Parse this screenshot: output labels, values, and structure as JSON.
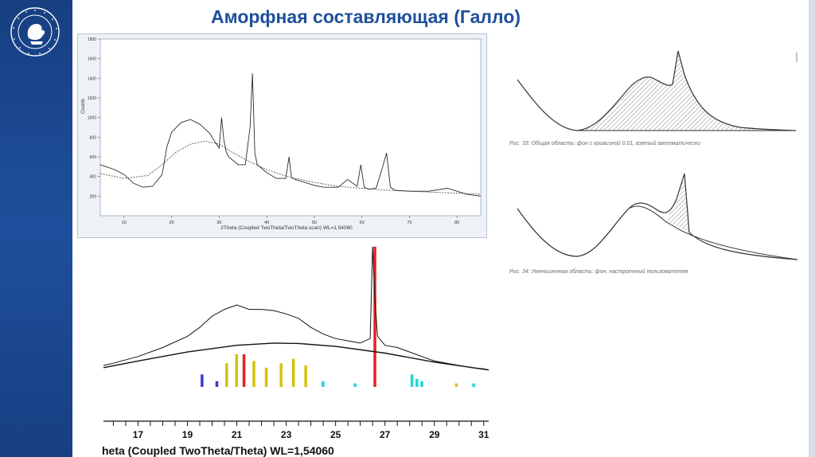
{
  "slide": {
    "title": "Аморфная составляющая (Галло)"
  },
  "logo": {
    "ring_text": "КАЗАНСКИЙ ФЕДЕРАЛЬНЫЙ УНИВЕРСИТЕТ"
  },
  "top_chart": {
    "ylabel": "Counts",
    "xlabel": "2Theta (Coupled TwoTheta/TwoTheta scan) WL=1,54060",
    "x_ticks": [
      "10",
      "20",
      "30",
      "40",
      "50",
      "60",
      "70",
      "80"
    ],
    "y_ticks": [
      "200",
      "400",
      "600",
      "800",
      "1000",
      "1200",
      "1400",
      "1600",
      "1800"
    ]
  },
  "bottom_chart": {
    "xlabel": "heta (Coupled TwoTheta/Theta) WL=1,54060",
    "x_ticks": [
      "17",
      "19",
      "21",
      "23",
      "25",
      "27",
      "29",
      "31"
    ]
  },
  "figures": {
    "fig33_caption": "Рис. 33: Общая область: фон с кривизной 0.01, взятый автоматически",
    "fig34_caption": "Рис. 34: Уменьшенная область: фон, настроенный пользователем"
  },
  "chart_data": [
    {
      "type": "line",
      "xlabel": "2Theta (Coupled TwoTheta/TwoTheta scan) WL=1,54060",
      "ylabel": "Counts",
      "xlim": [
        5,
        85
      ],
      "ylim": [
        0,
        1800
      ],
      "series": [
        {
          "x": [
            5,
            8,
            10,
            12,
            14,
            16,
            18,
            19,
            20,
            22,
            24,
            26,
            28,
            29,
            30,
            30.5,
            31,
            31.5,
            32,
            34,
            35.5,
            36.5,
            37,
            37.5,
            38,
            40,
            42,
            44,
            44.7,
            45.2,
            46,
            48,
            50,
            52,
            55,
            57,
            59,
            59.8,
            60.5,
            61.5,
            63,
            64.5,
            65.2,
            66,
            67,
            70,
            74,
            78,
            82,
            85
          ],
          "y": [
            520,
            470,
            420,
            330,
            290,
            300,
            420,
            700,
            850,
            950,
            980,
            930,
            840,
            760,
            690,
            1000,
            770,
            650,
            600,
            520,
            520,
            900,
            1450,
            640,
            520,
            440,
            380,
            380,
            600,
            390,
            370,
            340,
            310,
            290,
            290,
            370,
            300,
            520,
            290,
            270,
            280,
            520,
            640,
            290,
            260,
            250,
            250,
            280,
            220,
            200
          ]
        },
        {
          "x": [
            5,
            10,
            15,
            18,
            21,
            24,
            27,
            30,
            33,
            36,
            40,
            45,
            50,
            55,
            60,
            65,
            70,
            75,
            80,
            85
          ],
          "y": [
            430,
            380,
            410,
            520,
            650,
            730,
            760,
            730,
            640,
            560,
            470,
            390,
            340,
            300,
            280,
            260,
            250,
            240,
            230,
            220
          ]
        }
      ]
    },
    {
      "type": "line",
      "xlabel": "heta (Coupled TwoTheta/Theta) WL=1,54060",
      "xlim": [
        15.6,
        31.2
      ],
      "series": [
        {
          "x": [
            15.6,
            16,
            17,
            18,
            19,
            19.5,
            20,
            20.5,
            21,
            21.5,
            22,
            22.5,
            23,
            23.5,
            24,
            24.5,
            25,
            25.5,
            26,
            26.4,
            26.5,
            26.6,
            26.7,
            27,
            27.5,
            28,
            28.5,
            29,
            29.5,
            30,
            30.5,
            31,
            31.2
          ],
          "y": [
            110,
            120,
            150,
            190,
            240,
            280,
            330,
            360,
            380,
            360,
            360,
            355,
            340,
            320,
            280,
            250,
            230,
            220,
            210,
            230,
            640,
            390,
            240,
            200,
            190,
            170,
            150,
            130,
            120,
            110,
            100,
            95,
            90
          ]
        },
        {
          "x": [
            15.6,
            17,
            19,
            21,
            22.5,
            23.5,
            25,
            27,
            29,
            31.2
          ],
          "y": [
            100,
            130,
            170,
            200,
            210,
            208,
            195,
            165,
            125,
            90
          ]
        }
      ],
      "phase_lines": [
        {
          "x": 19.6,
          "h": 70,
          "color": "#3b3bd0"
        },
        {
          "x": 20.2,
          "h": 40,
          "color": "#3b3bd0"
        },
        {
          "x": 20.6,
          "h": 120,
          "color": "#d4c20e"
        },
        {
          "x": 21.0,
          "h": 160,
          "color": "#d4c20e"
        },
        {
          "x": 21.3,
          "h": 160,
          "color": "#e82020"
        },
        {
          "x": 21.7,
          "h": 130,
          "color": "#d4c20e"
        },
        {
          "x": 22.2,
          "h": 100,
          "color": "#d4c20e"
        },
        {
          "x": 22.8,
          "h": 120,
          "color": "#d4c20e"
        },
        {
          "x": 23.3,
          "h": 140,
          "color": "#d4c20e"
        },
        {
          "x": 23.8,
          "h": 110,
          "color": "#d4c20e"
        },
        {
          "x": 24.5,
          "h": 40,
          "color": "#22d6d6"
        },
        {
          "x": 25.8,
          "h": 30,
          "color": "#22d6d6"
        },
        {
          "x": 26.6,
          "h": 640,
          "color": "#e82020"
        },
        {
          "x": 28.1,
          "h": 70,
          "color": "#22d6d6"
        },
        {
          "x": 28.3,
          "h": 50,
          "color": "#22d6d6"
        },
        {
          "x": 28.5,
          "h": 40,
          "color": "#22d6d6"
        },
        {
          "x": 29.9,
          "h": 30,
          "color": "#d4c20e"
        },
        {
          "x": 30.6,
          "h": 30,
          "color": "#22d6d6"
        }
      ]
    }
  ]
}
